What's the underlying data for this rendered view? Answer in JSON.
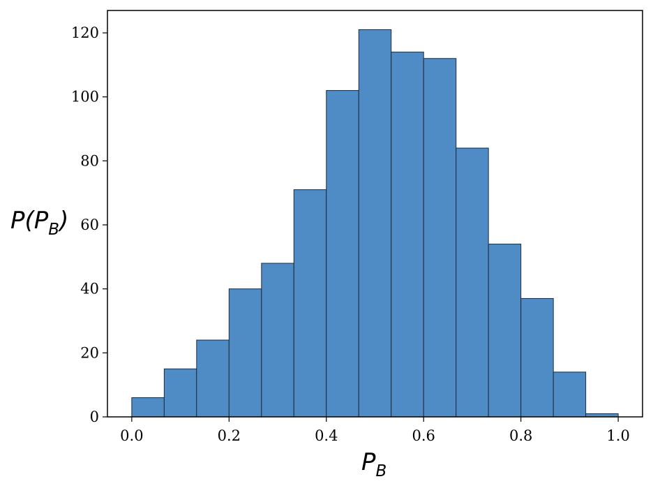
{
  "chart_data": {
    "type": "bar",
    "title": "",
    "xlabel": {
      "main": "P",
      "sub": "B"
    },
    "ylabel": {
      "main": "P(P",
      "sub": "B",
      "close": ")"
    },
    "bin_edges": [
      0.0,
      0.0667,
      0.1333,
      0.2,
      0.2667,
      0.3333,
      0.4,
      0.4667,
      0.5333,
      0.6,
      0.6667,
      0.7333,
      0.8,
      0.8667,
      0.9333,
      1.0
    ],
    "values": [
      6,
      15,
      24,
      40,
      48,
      71,
      102,
      121,
      114,
      112,
      84,
      54,
      37,
      14,
      1
    ],
    "xlim": [
      -0.05,
      1.05
    ],
    "ylim": [
      0,
      127
    ],
    "xticks": [
      "0.0",
      "0.2",
      "0.4",
      "0.6",
      "0.8",
      "1.0"
    ],
    "xtick_values": [
      0.0,
      0.2,
      0.4,
      0.6,
      0.8,
      1.0
    ],
    "yticks": [
      "0",
      "20",
      "40",
      "60",
      "80",
      "100",
      "120"
    ],
    "ytick_values": [
      0,
      20,
      40,
      60,
      80,
      100,
      120
    ],
    "bar_color": "#4f8bc4",
    "edge_color": "#1f2a3a",
    "grid": false,
    "legend": "none"
  }
}
